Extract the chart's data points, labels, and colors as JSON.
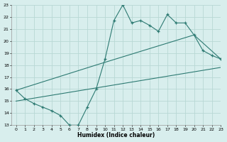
{
  "line1_x": [
    0,
    1,
    2,
    3,
    4,
    5,
    6,
    7,
    8,
    9,
    10,
    11,
    12,
    13,
    14,
    15,
    16,
    17,
    18,
    19,
    20,
    21,
    22,
    23
  ],
  "line1_y": [
    15.9,
    15.2,
    14.8,
    14.5,
    14.2,
    13.8,
    13.0,
    13.0,
    14.5,
    16.0,
    18.5,
    21.7,
    23.0,
    21.5,
    21.7,
    21.3,
    20.8,
    22.2,
    21.5,
    21.5,
    20.5,
    19.2,
    18.8,
    18.5
  ],
  "line2_x": [
    0,
    9,
    20,
    23
  ],
  "line2_y": [
    15.9,
    18.0,
    20.5,
    18.5
  ],
  "line3_x": [
    0,
    23
  ],
  "line3_y": [
    15.0,
    17.8
  ],
  "color": "#2d7a72",
  "bg_color": "#d8eeed",
  "grid_color": "#b8d8d5",
  "xlabel": "Humidex (Indice chaleur)",
  "xlim": [
    -0.5,
    23
  ],
  "ylim": [
    13,
    23
  ],
  "yticks": [
    13,
    14,
    15,
    16,
    17,
    18,
    19,
    20,
    21,
    22,
    23
  ],
  "xticks": [
    0,
    1,
    2,
    3,
    4,
    5,
    6,
    7,
    8,
    9,
    10,
    11,
    12,
    13,
    14,
    15,
    16,
    17,
    18,
    19,
    20,
    21,
    22,
    23
  ]
}
